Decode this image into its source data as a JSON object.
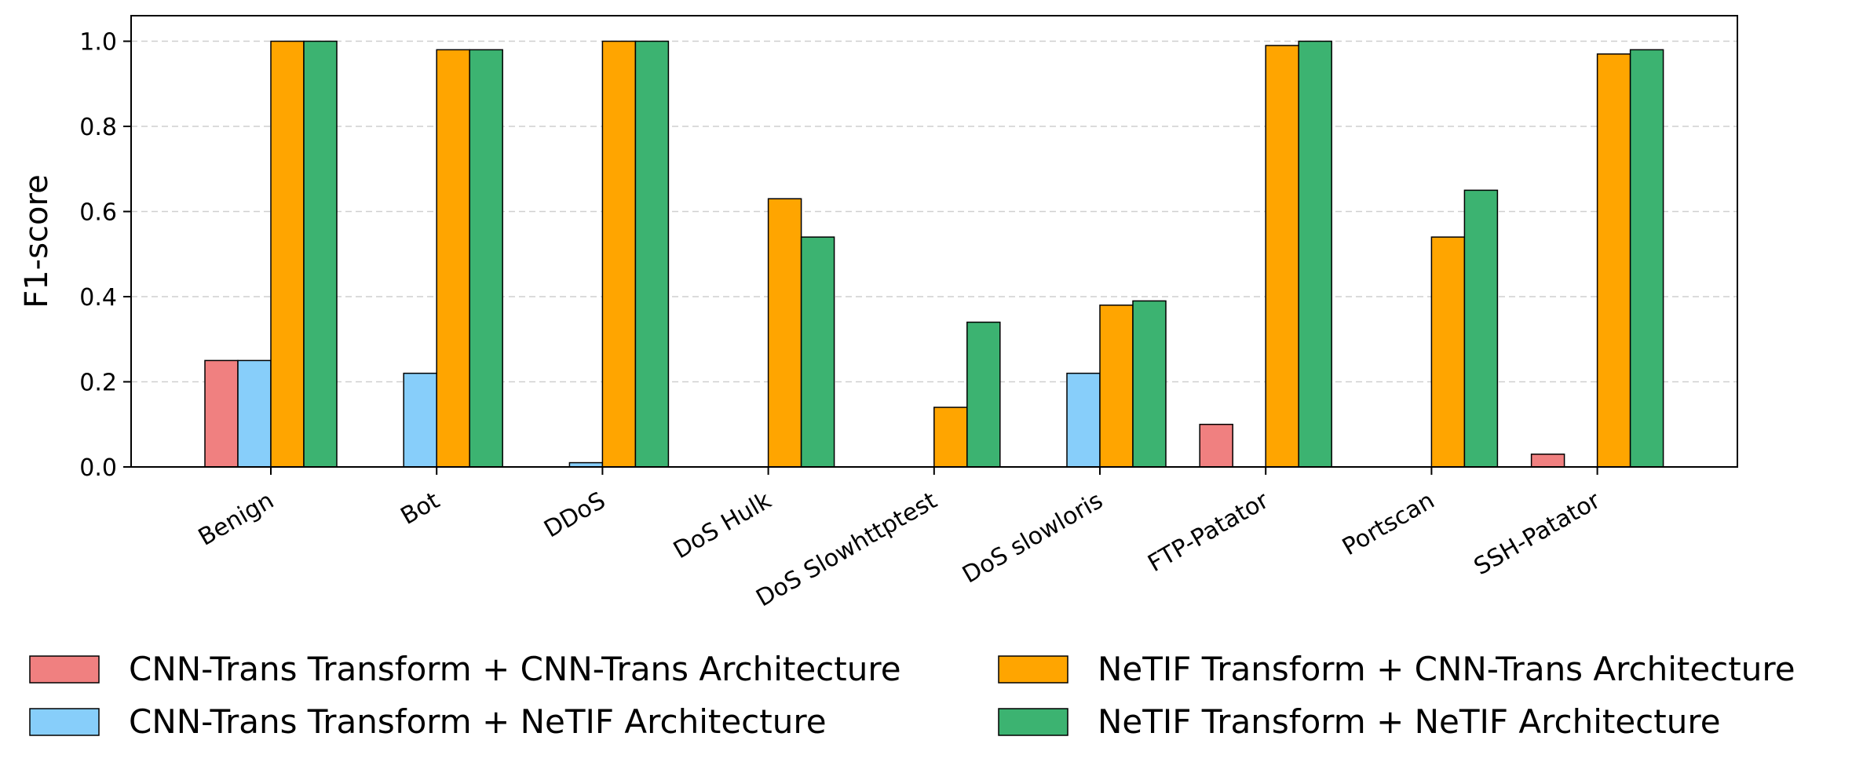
{
  "chart_data": {
    "type": "bar",
    "title": "",
    "xlabel": "",
    "ylabel": "F1-score",
    "ylim": [
      0,
      1.06
    ],
    "yticks": [
      "0.0",
      "0.2",
      "0.4",
      "0.6",
      "0.8",
      "1.0"
    ],
    "grid": "horizontal dashed",
    "legend_position": "bottom",
    "categories": [
      "Benign",
      "Bot",
      "DDoS",
      "DoS Hulk",
      "DoS Slowhttptest",
      "DoS slowloris",
      "FTP-Patator",
      "Portscan",
      "SSH-Patator"
    ],
    "series": [
      {
        "name": "CNN-Trans Transform + CNN-Trans Architecture",
        "color": "#f08080",
        "values": [
          0.25,
          0,
          0,
          0,
          0,
          0,
          0.1,
          0,
          0.03
        ]
      },
      {
        "name": "CNN-Trans Transform + NeTIF Architecture",
        "color": "#87cefa",
        "values": [
          0.25,
          0.22,
          0.01,
          0,
          0,
          0.22,
          0,
          0,
          0
        ]
      },
      {
        "name": "NeTIF Transform + CNN-Trans Architecture",
        "color": "#ffa500",
        "values": [
          1.0,
          0.98,
          1.0,
          0.63,
          0.14,
          0.38,
          0.99,
          0.54,
          0.97
        ]
      },
      {
        "name": "NeTIF Transform + NeTIF Architecture",
        "color": "#3cb371",
        "values": [
          1.0,
          0.98,
          1.0,
          0.54,
          0.34,
          0.39,
          1.0,
          0.65,
          0.98
        ]
      }
    ]
  }
}
